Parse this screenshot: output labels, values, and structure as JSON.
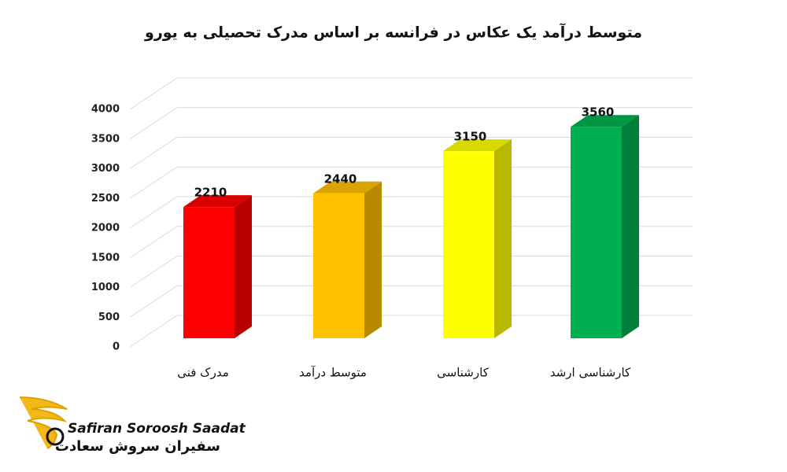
{
  "chart_data": {
    "type": "bar",
    "title": "متوسط درآمد یک عکاس در فرانسه بر اساس مدرک تحصیلی به یورو",
    "categories": [
      "مدرک فنی",
      "متوسط درآمد",
      "کارشناسی",
      "کارشناسی ارشد"
    ],
    "values": [
      2210,
      2440,
      3150,
      3560
    ],
    "colors": [
      "#ff0000",
      "#ffc000",
      "#ffff00",
      "#00b050"
    ],
    "ylim": [
      0,
      4000
    ],
    "yticks": [
      0,
      500,
      1000,
      1500,
      2000,
      2500,
      3000,
      3500,
      4000
    ],
    "grid": true
  },
  "logo": {
    "name": "Safiran Soroosh Saadat",
    "name_fa": "سفیران سروش سعادت"
  }
}
